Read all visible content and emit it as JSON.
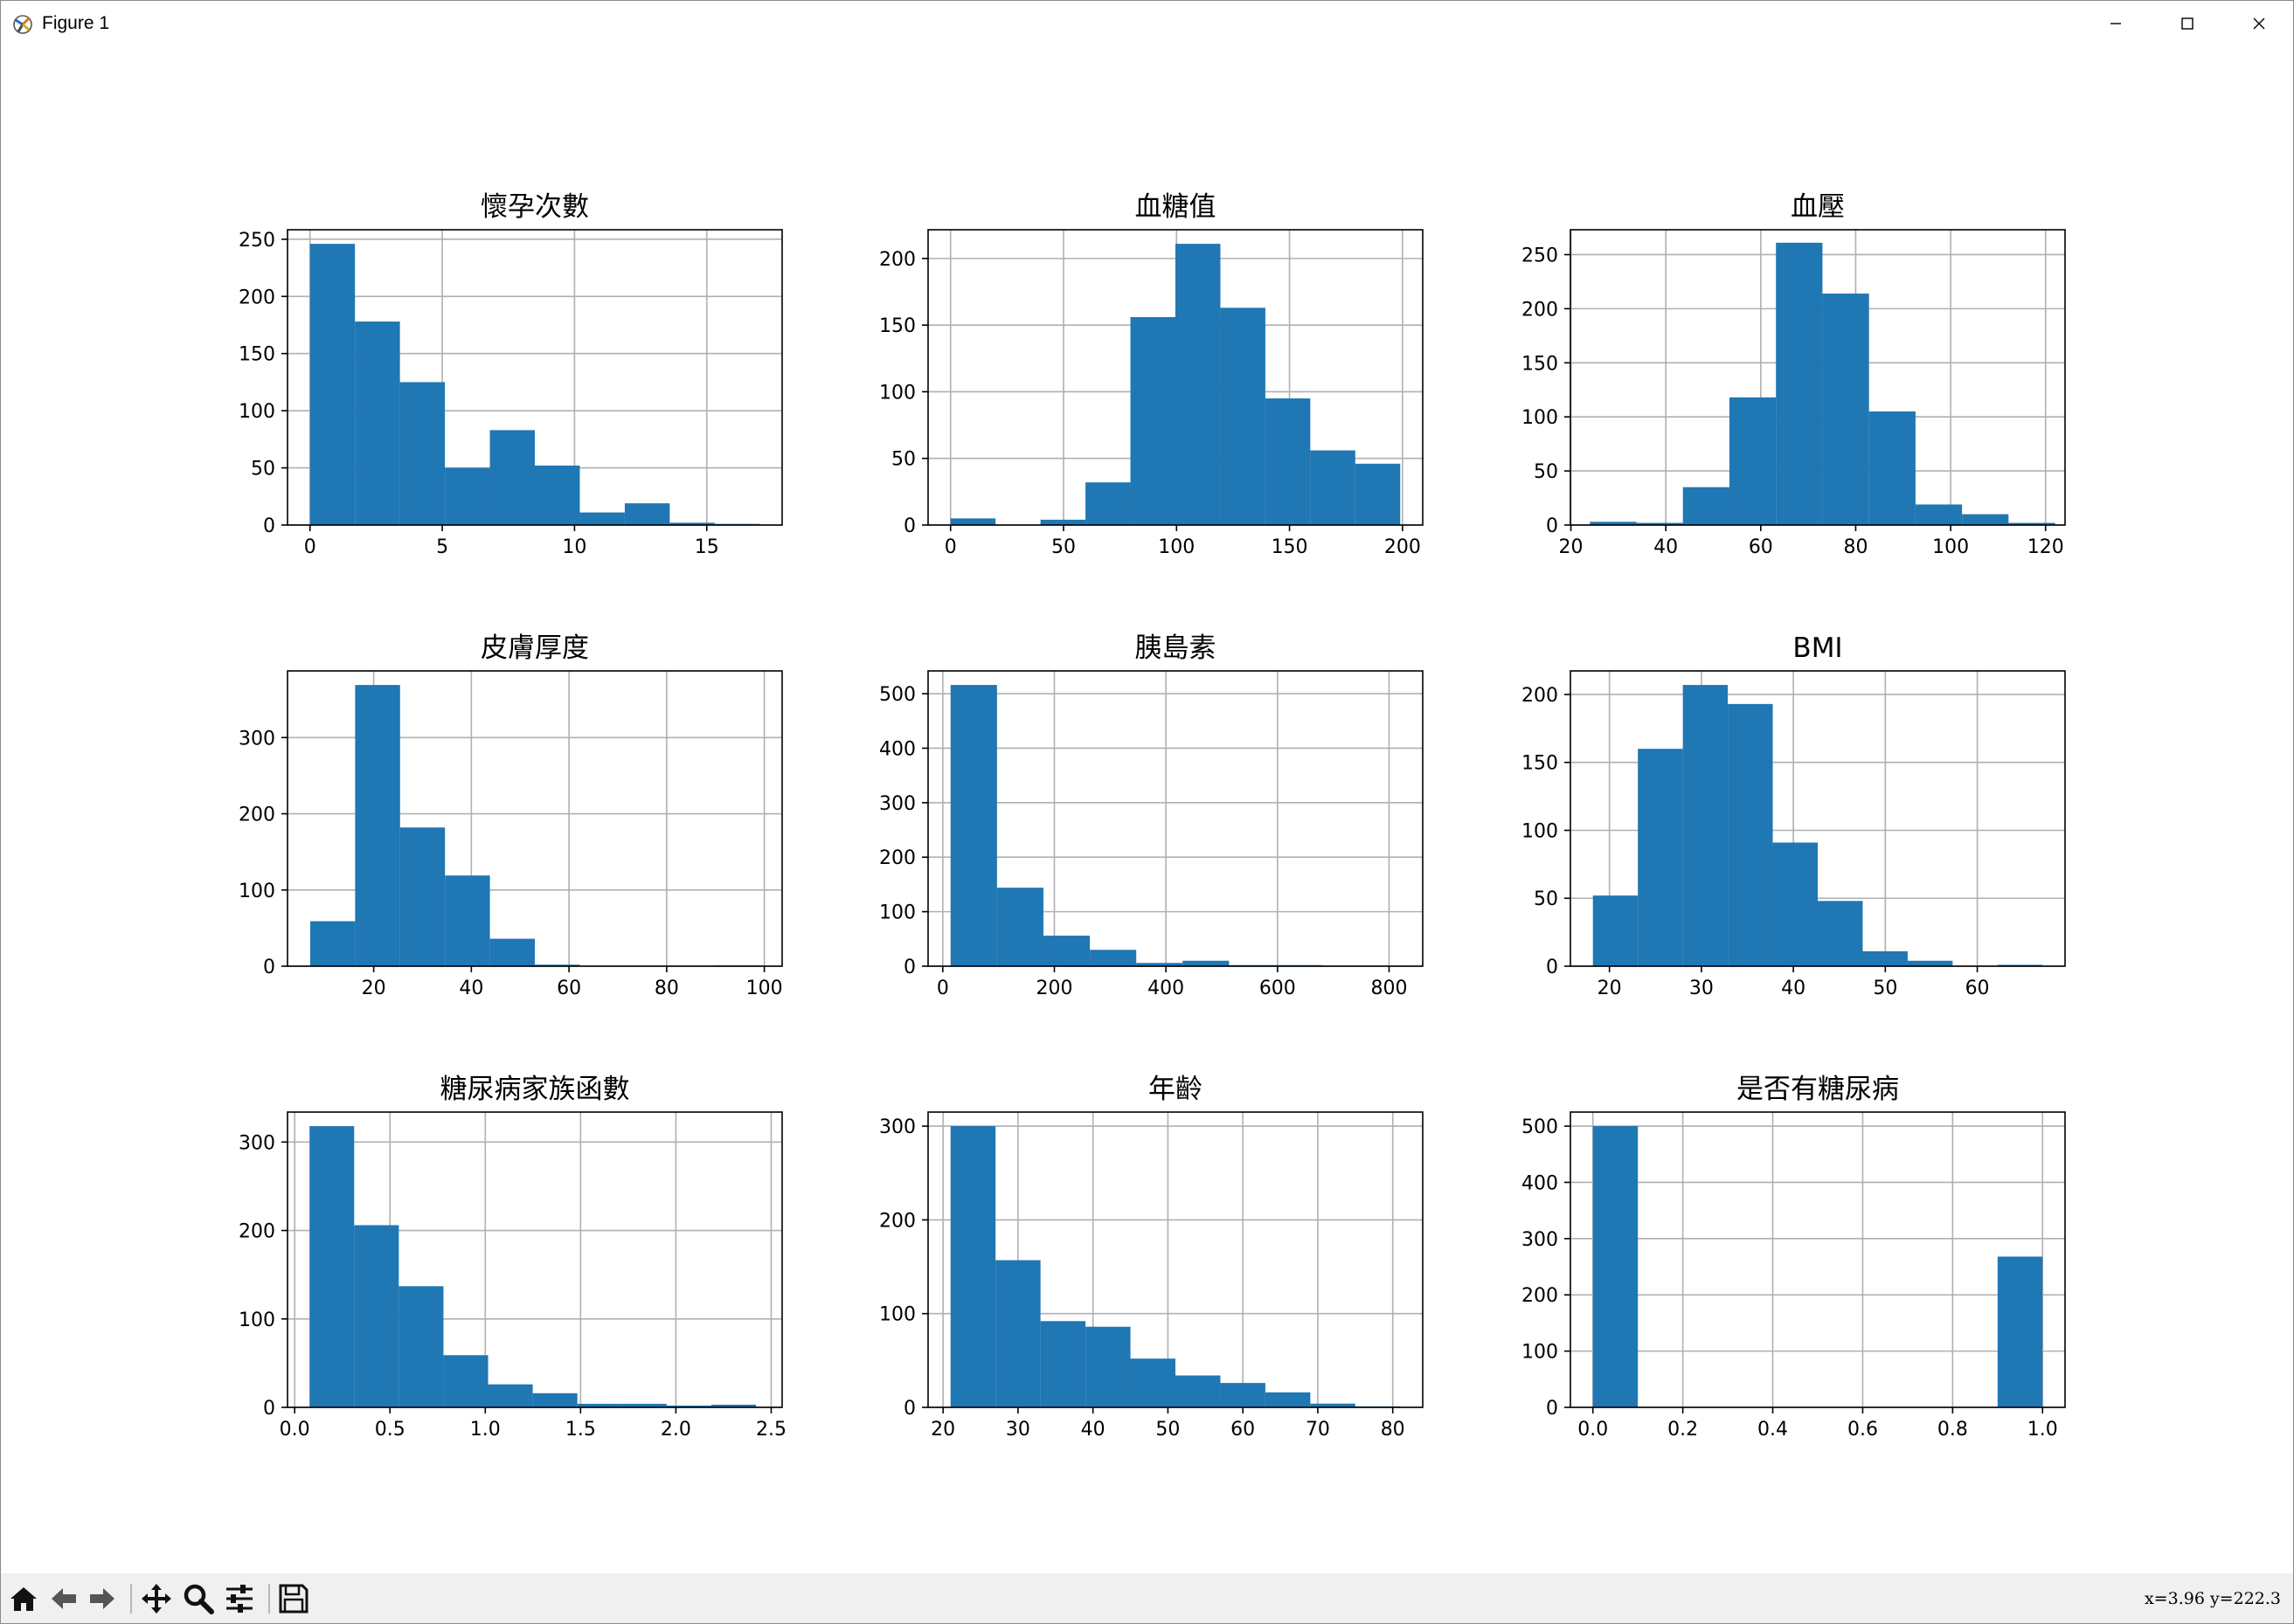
{
  "window": {
    "title": "Figure 1",
    "controls": {
      "minimize": "minimize",
      "maximize": "maximize",
      "close": "close"
    }
  },
  "toolbar": {
    "tools": [
      "home-icon",
      "back-arrow-icon",
      "forward-arrow-icon",
      "pan-move-icon",
      "zoom-magnifier-icon",
      "configure-subplots-icon",
      "save-floppy-icon"
    ],
    "coordinates": "x=3.96 y=222.3"
  },
  "colors": {
    "bar": "#1f77b4",
    "grid": "#b0b0b0",
    "axes": "#000000",
    "toolbar": "#f0f0f0"
  },
  "chart_data": [
    {
      "type": "bar",
      "title": "懷孕次數",
      "grid": true,
      "xlim": [
        -0.85,
        17.85
      ],
      "ylim": [
        0,
        258.3
      ],
      "xticks": [
        0,
        5,
        10,
        15
      ],
      "yticks": [
        0,
        50,
        100,
        150,
        200,
        250
      ],
      "bin_edges": [
        0,
        1.7,
        3.4,
        5.1,
        6.8,
        8.5,
        10.2,
        11.9,
        13.6,
        15.3,
        17
      ],
      "values": [
        246,
        178,
        125,
        50,
        83,
        52,
        11,
        19,
        2,
        1
      ]
    },
    {
      "type": "bar",
      "title": "血糖值",
      "grid": true,
      "xlim": [
        -9.95,
        208.95
      ],
      "ylim": [
        0,
        221.55
      ],
      "xticks": [
        0,
        50,
        100,
        150,
        200
      ],
      "yticks": [
        0,
        50,
        100,
        150,
        200
      ],
      "bin_edges": [
        0,
        19.9,
        39.8,
        59.7,
        79.6,
        99.5,
        119.4,
        139.3,
        159.2,
        179.1,
        199
      ],
      "values": [
        5,
        0,
        4,
        32,
        156,
        211,
        163,
        95,
        56,
        46
      ]
    },
    {
      "type": "bar",
      "title": "血壓",
      "grid": true,
      "xlim": [
        19.9,
        124.1
      ],
      "ylim": [
        0,
        273
      ],
      "xticks": [
        20,
        40,
        60,
        80,
        100,
        120
      ],
      "yticks": [
        0,
        50,
        100,
        150,
        200,
        250
      ],
      "bin_edges": [
        24,
        33.8,
        43.6,
        53.4,
        63.2,
        73,
        82.8,
        92.6,
        102.4,
        112.2,
        122
      ],
      "values": [
        3,
        2,
        35,
        118,
        261,
        214,
        105,
        19,
        10,
        2
      ]
    },
    {
      "type": "bar",
      "title": "皮膚厚度",
      "grid": true,
      "xlim": [
        2.35,
        103.65
      ],
      "ylim": [
        0,
        387.45
      ],
      "xticks": [
        20,
        40,
        60,
        80,
        100
      ],
      "yticks": [
        0,
        100,
        200,
        300
      ],
      "bin_edges": [
        7,
        16.2,
        25.4,
        34.6,
        43.8,
        53,
        62.2,
        71.4,
        80.6,
        89.8,
        99
      ],
      "values": [
        59,
        369,
        182,
        119,
        36,
        2,
        0,
        0,
        0,
        1
      ]
    },
    {
      "type": "bar",
      "title": "胰島素",
      "grid": true,
      "xlim": [
        -26.35,
        860.35
      ],
      "ylim": [
        0,
        541.8
      ],
      "xticks": [
        0,
        200,
        400,
        600,
        800
      ],
      "yticks": [
        0,
        100,
        200,
        300,
        400,
        500
      ],
      "bin_edges": [
        14,
        97.2,
        180.4,
        263.6,
        346.8,
        430,
        513.2,
        596.4,
        679.6,
        762.8,
        846
      ],
      "values": [
        516,
        144,
        56,
        30,
        6,
        10,
        2,
        2,
        1,
        1
      ]
    },
    {
      "type": "bar",
      "title": "BMI",
      "grid": true,
      "xlim": [
        15.755,
        69.545
      ],
      "ylim": [
        0,
        217.35
      ],
      "xticks": [
        20,
        30,
        40,
        50,
        60
      ],
      "yticks": [
        0,
        50,
        100,
        150,
        200
      ],
      "bin_edges": [
        18.2,
        23.09,
        27.98,
        32.87,
        37.76,
        42.65,
        47.54,
        52.43,
        57.32,
        62.21,
        67.1
      ],
      "values": [
        52,
        160,
        207,
        193,
        91,
        48,
        11,
        4,
        0,
        1
      ]
    },
    {
      "type": "bar",
      "title": "糖尿病家族函數",
      "grid": true,
      "xlim": [
        -0.0375,
        2.5575
      ],
      "ylim": [
        0,
        333.9
      ],
      "xticks": [
        0.0,
        0.5,
        1.0,
        1.5,
        2.0,
        2.5
      ],
      "yticks": [
        0,
        100,
        200,
        300
      ],
      "bin_edges": [
        0.078,
        0.3122,
        0.5464,
        0.7806,
        1.0148,
        1.249,
        1.4832,
        1.7174,
        1.9516,
        2.1858,
        2.42
      ],
      "values": [
        318,
        206,
        137,
        59,
        26,
        16,
        4,
        4,
        2,
        3
      ]
    },
    {
      "type": "bar",
      "title": "年齡",
      "grid": true,
      "xlim": [
        18,
        84
      ],
      "ylim": [
        0,
        315
      ],
      "xticks": [
        20,
        30,
        40,
        50,
        60,
        70,
        80
      ],
      "yticks": [
        0,
        100,
        200,
        300
      ],
      "bin_edges": [
        21,
        27,
        33,
        39,
        45,
        51,
        57,
        63,
        69,
        75,
        81
      ],
      "values": [
        300,
        157,
        92,
        86,
        52,
        34,
        26,
        16,
        4,
        1
      ]
    },
    {
      "type": "bar",
      "title": "是否有糖尿病",
      "grid": true,
      "xlim": [
        -0.05,
        1.05
      ],
      "ylim": [
        0,
        525
      ],
      "xticks": [
        0.0,
        0.2,
        0.4,
        0.6,
        0.8,
        1.0
      ],
      "yticks": [
        0,
        100,
        200,
        300,
        400,
        500
      ],
      "bin_edges": [
        0,
        0.1,
        0.2,
        0.3,
        0.4,
        0.5,
        0.6,
        0.7,
        0.8,
        0.9,
        1.0
      ],
      "values": [
        500,
        0,
        0,
        0,
        0,
        0,
        0,
        0,
        0,
        268
      ]
    }
  ]
}
